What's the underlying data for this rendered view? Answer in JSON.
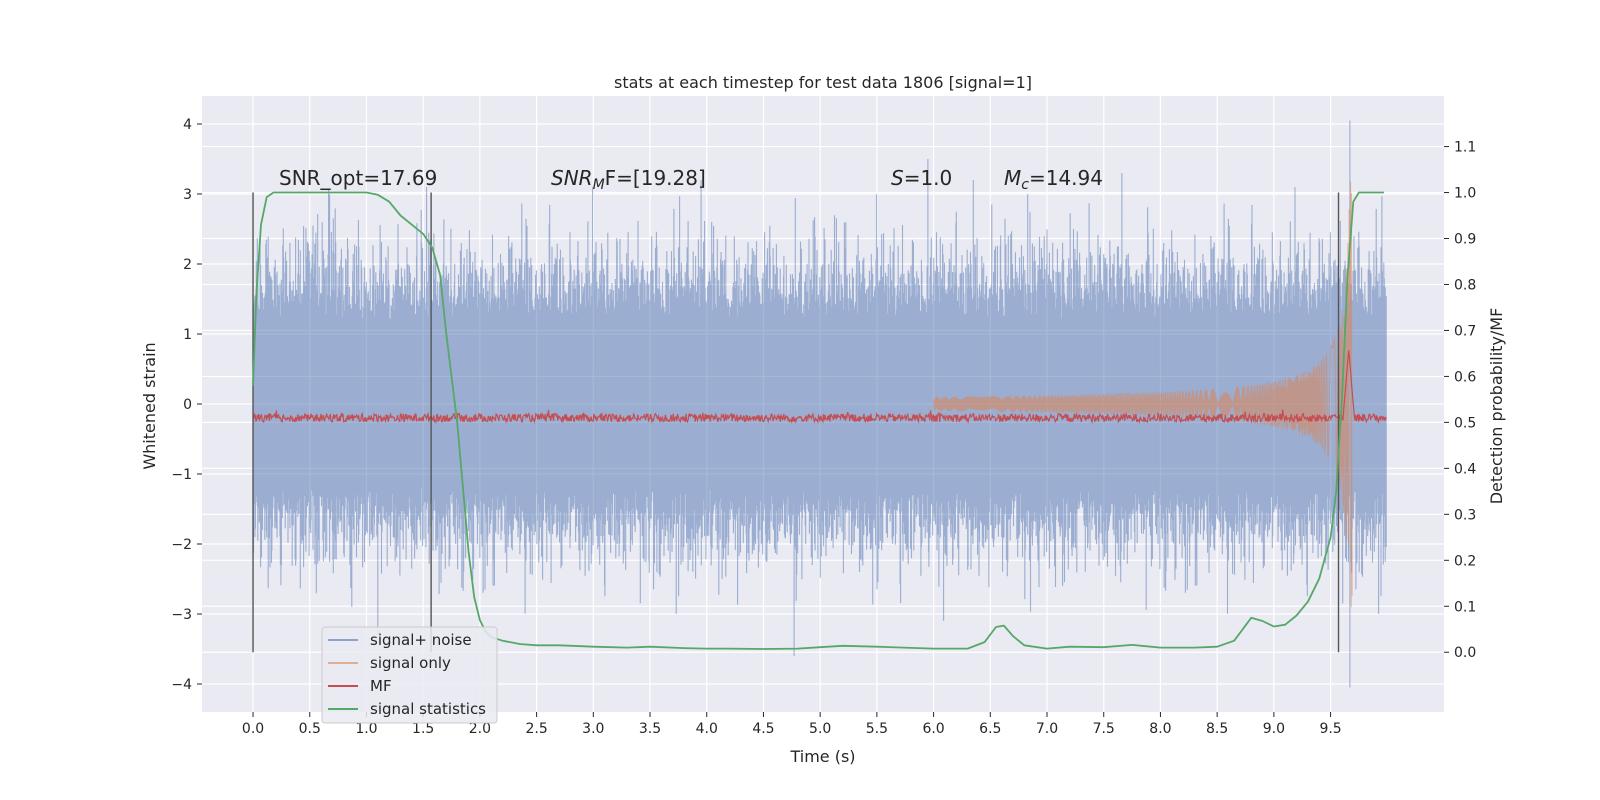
{
  "chart_data": {
    "type": "line",
    "title": "stats at each timestep for test data 1806 [signal=1]",
    "xlabel": "Time (s)",
    "ylabel": "Whitened strain",
    "y2label": "Detection probability/MF",
    "xlim": [
      -0.45,
      10.5
    ],
    "ylim": [
      -4.4,
      4.4
    ],
    "y2lim": [
      -0.13,
      1.21
    ],
    "x_ticks": [
      "0.0",
      "0.5",
      "1.0",
      "1.5",
      "2.0",
      "2.5",
      "3.0",
      "3.5",
      "4.0",
      "4.5",
      "5.0",
      "5.5",
      "6.0",
      "6.5",
      "7.0",
      "7.5",
      "8.0",
      "8.5",
      "9.0",
      "9.5"
    ],
    "y_ticks": [
      "4",
      "3",
      "2",
      "1",
      "0",
      "−1",
      "−2",
      "−3",
      "−4"
    ],
    "y2_ticks": [
      "1.1",
      "1.0",
      "0.9",
      "0.8",
      "0.7",
      "0.6",
      "0.5",
      "0.4",
      "0.3",
      "0.2",
      "0.1",
      "0.0"
    ],
    "grid": true,
    "legend_position": "lower-left",
    "colors": {
      "background": "#eaeaf2",
      "signal_noise": "#4c72b0",
      "signal_only": "#dd8452",
      "mf": "#c44e52",
      "stats": "#55a868",
      "vline": "#555555"
    },
    "annotations": {
      "snr_opt": "SNR_opt=17.69",
      "snr_mf_base": "SNR",
      "snr_mf_sub": "M",
      "snr_mf_rest": "F=[19.28]",
      "s_italic": "S",
      "s_rest": "=1.0",
      "mc_base": "M",
      "mc_sub": "c",
      "mc_rest": "=14.94"
    },
    "vlines_x": [
      0.0,
      1.57,
      9.57
    ],
    "vlines_y2": [
      0.0,
      1.0
    ],
    "series": [
      {
        "name": "signal+ noise",
        "key": "signal_noise",
        "axis": "y",
        "x_range": [
          0.0,
          9.99
        ],
        "typical_envelope": 1.3,
        "peak_envelope": 3.4,
        "notable_spikes": [
          {
            "x": 0.61,
            "y": 2.6
          },
          {
            "x": 1.1,
            "y": -3.3
          },
          {
            "x": 1.53,
            "y": 3.1
          },
          {
            "x": 3.95,
            "y": 3.2
          },
          {
            "x": 4.77,
            "y": -3.6
          },
          {
            "x": 5.95,
            "y": 3.5
          },
          {
            "x": 6.35,
            "y": 3.2
          },
          {
            "x": 7.66,
            "y": 3.3
          },
          {
            "x": 9.67,
            "y": 4.05
          },
          {
            "x": 9.67,
            "y": -4.05
          }
        ]
      },
      {
        "name": "signal only",
        "key": "signal_only",
        "axis": "y",
        "chirp_start": 6.0,
        "peak_time": 9.67,
        "peak_amplitude": 3.2
      },
      {
        "name": "MF",
        "key": "mf",
        "axis": "y2",
        "baseline": 0.51,
        "peak": {
          "x": 9.66,
          "y": 0.66
        }
      },
      {
        "name": "signal statistics",
        "key": "stats",
        "axis": "y2",
        "x": [
          0.0,
          0.03,
          0.07,
          0.12,
          0.18,
          0.3,
          0.5,
          0.8,
          1.0,
          1.1,
          1.2,
          1.3,
          1.4,
          1.5,
          1.58,
          1.65,
          1.7,
          1.75,
          1.8,
          1.85,
          1.9,
          1.95,
          2.0,
          2.05,
          2.1,
          2.2,
          2.35,
          2.5,
          2.7,
          3.0,
          3.3,
          3.5,
          3.8,
          4.0,
          4.2,
          4.5,
          4.8,
          5.0,
          5.2,
          5.5,
          6.0,
          6.3,
          6.45,
          6.55,
          6.62,
          6.7,
          6.8,
          7.0,
          7.2,
          7.5,
          7.75,
          8.0,
          8.3,
          8.5,
          8.65,
          8.8,
          8.9,
          9.0,
          9.1,
          9.2,
          9.3,
          9.4,
          9.5,
          9.55,
          9.6,
          9.65,
          9.7,
          9.75,
          9.8,
          9.9,
          9.97
        ],
        "y": [
          0.58,
          0.78,
          0.93,
          0.99,
          1.0,
          1.0,
          1.0,
          1.0,
          1.0,
          0.995,
          0.98,
          0.95,
          0.93,
          0.91,
          0.88,
          0.82,
          0.7,
          0.6,
          0.5,
          0.36,
          0.22,
          0.12,
          0.07,
          0.045,
          0.033,
          0.025,
          0.018,
          0.015,
          0.015,
          0.012,
          0.01,
          0.012,
          0.009,
          0.008,
          0.008,
          0.007,
          0.008,
          0.011,
          0.014,
          0.012,
          0.008,
          0.008,
          0.022,
          0.055,
          0.058,
          0.035,
          0.015,
          0.008,
          0.012,
          0.011,
          0.016,
          0.01,
          0.01,
          0.012,
          0.025,
          0.075,
          0.068,
          0.056,
          0.06,
          0.08,
          0.11,
          0.16,
          0.25,
          0.35,
          0.55,
          0.82,
          0.98,
          1.0,
          1.0,
          1.0,
          1.0
        ]
      }
    ]
  }
}
